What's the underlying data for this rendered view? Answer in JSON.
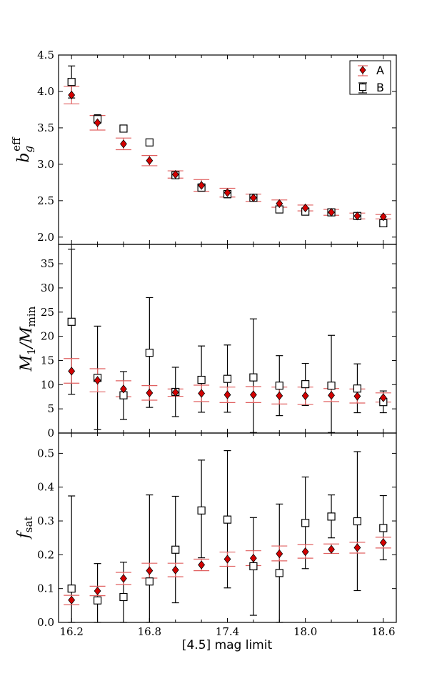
{
  "xlabel": "[4.5] mag limit",
  "xtick_labels": [
    "16.2",
    "16.8",
    "17.4",
    "18.0",
    "18.6"
  ],
  "xtick_values": [
    16.2,
    16.8,
    17.4,
    18.0,
    18.6
  ],
  "colors": {
    "A": "#d40000",
    "A_err": "#e06060",
    "B": "#000000",
    "B_face": "#ffffff"
  },
  "chart_data": [
    {
      "type": "scatter",
      "panel": "top",
      "ylabel_main": "b",
      "ylabel_sub": "g",
      "ylabel_sup": "eff",
      "ylim": [
        1.9,
        4.5
      ],
      "yticks": [
        2.0,
        2.5,
        3.0,
        3.5,
        4.0,
        4.5
      ],
      "ytick_labels": [
        "2.0",
        "2.5",
        "3.0",
        "3.5",
        "4.0",
        "4.5"
      ],
      "xlim": [
        16.1,
        18.7
      ],
      "legend": {
        "placement": "top-right",
        "entries": [
          "A",
          "B"
        ]
      },
      "x": [
        16.2,
        16.4,
        16.6,
        16.8,
        17.0,
        17.2,
        17.4,
        17.6,
        17.8,
        18.0,
        18.2,
        18.4,
        18.6
      ],
      "series": [
        {
          "name": "A",
          "marker": "diamond",
          "values": [
            3.95,
            3.57,
            3.28,
            3.05,
            2.86,
            2.71,
            2.61,
            2.54,
            2.46,
            2.4,
            2.34,
            2.29,
            2.28
          ],
          "err": [
            0.12,
            0.1,
            0.08,
            0.07,
            0.05,
            0.08,
            0.06,
            0.05,
            0.05,
            0.04,
            0.04,
            0.04,
            0.03
          ]
        },
        {
          "name": "B",
          "marker": "square",
          "values": [
            4.13,
            3.62,
            3.49,
            3.3,
            2.85,
            2.68,
            2.59,
            2.54,
            2.38,
            2.35,
            2.34,
            2.29,
            2.19
          ],
          "err": [
            0.22,
            0.06,
            0.03,
            0.03,
            0.03,
            0.05,
            0.05,
            0.04,
            0.03,
            0.03,
            0.03,
            0.03,
            0.03
          ]
        }
      ]
    },
    {
      "type": "scatter",
      "panel": "middle",
      "ylabel_main": "M",
      "ylabel_sub": "1",
      "ylabel_mid": "/M",
      "ylabel_sub2": "min",
      "ylim": [
        0,
        39
      ],
      "yticks": [
        0,
        5,
        10,
        15,
        20,
        25,
        30,
        35
      ],
      "ytick_labels": [
        "0",
        "5",
        "10",
        "15",
        "20",
        "25",
        "30",
        "35"
      ],
      "xlim": [
        16.1,
        18.7
      ],
      "x": [
        16.2,
        16.4,
        16.6,
        16.8,
        17.0,
        17.2,
        17.4,
        17.6,
        17.8,
        18.0,
        18.2,
        18.4,
        18.6
      ],
      "series": [
        {
          "name": "A",
          "marker": "diamond",
          "values": [
            12.8,
            10.9,
            9.1,
            8.3,
            8.4,
            8.2,
            7.9,
            7.9,
            7.7,
            7.7,
            7.8,
            7.6,
            7.3
          ],
          "lo": [
            10.3,
            8.5,
            7.5,
            6.8,
            7.6,
            6.5,
            6.3,
            6.3,
            6.0,
            5.9,
            6.5,
            6.2,
            6.4
          ],
          "hi": [
            15.4,
            13.3,
            10.8,
            9.8,
            9.1,
            9.9,
            9.5,
            9.6,
            9.5,
            9.5,
            9.2,
            9.1,
            8.3
          ]
        },
        {
          "name": "B",
          "marker": "square",
          "values": [
            23.0,
            11.4,
            7.8,
            16.6,
            8.5,
            11.0,
            11.2,
            11.5,
            9.8,
            10.1,
            9.8,
            9.2,
            6.4
          ],
          "lo": [
            8.0,
            0.7,
            2.8,
            5.3,
            3.4,
            4.3,
            4.3,
            0.1,
            3.6,
            5.7,
            0.1,
            4.2,
            4.2
          ],
          "hi": [
            38.0,
            22.1,
            12.7,
            28.0,
            13.6,
            18.0,
            18.2,
            23.6,
            16.0,
            14.4,
            20.2,
            14.3,
            8.7
          ]
        }
      ]
    },
    {
      "type": "scatter",
      "panel": "bottom",
      "ylabel_main": "f",
      "ylabel_sub": "sat",
      "ylim": [
        0.0,
        0.56
      ],
      "yticks": [
        0.0,
        0.1,
        0.2,
        0.3,
        0.4,
        0.5
      ],
      "ytick_labels": [
        "0.0",
        "0.1",
        "0.2",
        "0.3",
        "0.4",
        "0.5"
      ],
      "xlim": [
        16.1,
        18.7
      ],
      "x": [
        16.2,
        16.4,
        16.6,
        16.8,
        17.0,
        17.2,
        17.4,
        17.6,
        17.8,
        18.0,
        18.2,
        18.4,
        18.6
      ],
      "series": [
        {
          "name": "A",
          "marker": "diamond",
          "values": [
            0.066,
            0.093,
            0.13,
            0.153,
            0.155,
            0.17,
            0.187,
            0.19,
            0.203,
            0.209,
            0.216,
            0.221,
            0.236
          ],
          "lo": [
            0.052,
            0.079,
            0.112,
            0.131,
            0.135,
            0.153,
            0.166,
            0.168,
            0.182,
            0.19,
            0.204,
            0.205,
            0.22
          ],
          "hi": [
            0.08,
            0.107,
            0.148,
            0.175,
            0.175,
            0.187,
            0.208,
            0.212,
            0.226,
            0.23,
            0.232,
            0.237,
            0.252
          ]
        },
        {
          "name": "B",
          "marker": "square",
          "values": [
            0.1,
            0.065,
            0.075,
            0.121,
            0.215,
            0.331,
            0.304,
            0.166,
            0.146,
            0.294,
            0.313,
            0.299,
            0.279
          ],
          "lo": [
            0.0,
            0.0,
            0.0,
            0.0,
            0.058,
            0.191,
            0.102,
            0.021,
            0.0,
            0.159,
            0.25,
            0.094,
            0.185
          ],
          "hi": [
            0.374,
            0.174,
            0.178,
            0.377,
            0.373,
            0.48,
            0.508,
            0.31,
            0.35,
            0.43,
            0.377,
            0.505,
            0.375
          ]
        }
      ]
    }
  ]
}
